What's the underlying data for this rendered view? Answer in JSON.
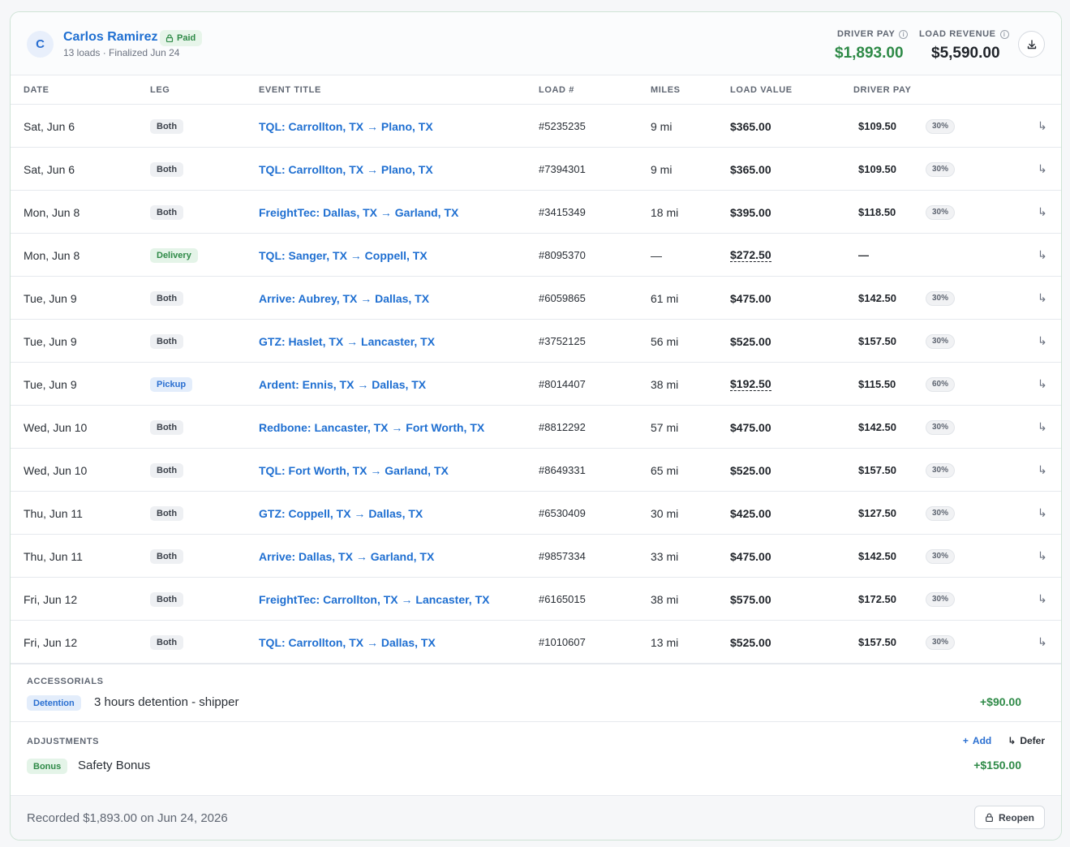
{
  "driver": {
    "initial": "C",
    "name": "Carlos Ramirez",
    "status": "Paid",
    "subtitle": "13 loads · Finalized Jun 24"
  },
  "stats": {
    "driver_pay_label": "DRIVER PAY",
    "driver_pay_value": "$1,893.00",
    "load_revenue_label": "LOAD REVENUE",
    "load_revenue_value": "$5,590.00"
  },
  "columns": [
    "DATE",
    "LEG",
    "EVENT TITLE",
    "LOAD #",
    "MILES",
    "LOAD VALUE",
    "DRIVER PAY"
  ],
  "rows": [
    {
      "date": "Sat, Jun 6",
      "leg": "Both",
      "title": "TQL: Carrollton, TX → Plano, TX",
      "load": "#5235235",
      "miles": "9 mi",
      "value": "$365.00",
      "pay": "$109.50",
      "pct": "30%"
    },
    {
      "date": "Sat, Jun 6",
      "leg": "Both",
      "title": "TQL: Carrollton, TX → Plano, TX",
      "load": "#7394301",
      "miles": "9 mi",
      "value": "$365.00",
      "pay": "$109.50",
      "pct": "30%"
    },
    {
      "date": "Mon, Jun 8",
      "leg": "Both",
      "title": "FreightTec: Dallas, TX → Garland, TX",
      "load": "#3415349",
      "miles": "18 mi",
      "value": "$395.00",
      "pay": "$118.50",
      "pct": "30%"
    },
    {
      "date": "Mon, Jun 8",
      "leg": "Delivery",
      "title": "TQL: Sanger, TX → Coppell, TX",
      "load": "#8095370",
      "miles": "—",
      "value": "$272.50",
      "pay": "—",
      "pct": ""
    },
    {
      "date": "Tue, Jun 9",
      "leg": "Both",
      "title": "Arrive: Aubrey, TX → Dallas, TX",
      "load": "#6059865",
      "miles": "61 mi",
      "value": "$475.00",
      "pay": "$142.50",
      "pct": "30%"
    },
    {
      "date": "Tue, Jun 9",
      "leg": "Both",
      "title": "GTZ: Haslet, TX → Lancaster, TX",
      "load": "#3752125",
      "miles": "56 mi",
      "value": "$525.00",
      "pay": "$157.50",
      "pct": "30%"
    },
    {
      "date": "Tue, Jun 9",
      "leg": "Pickup",
      "title": "Ardent: Ennis, TX → Dallas, TX",
      "load": "#8014407",
      "miles": "38 mi",
      "value": "$192.50",
      "pay": "$115.50",
      "pct": "60%"
    },
    {
      "date": "Wed, Jun 10",
      "leg": "Both",
      "title": "Redbone: Lancaster, TX → Fort Worth, TX",
      "load": "#8812292",
      "miles": "57 mi",
      "value": "$475.00",
      "pay": "$142.50",
      "pct": "30%"
    },
    {
      "date": "Wed, Jun 10",
      "leg": "Both",
      "title": "TQL: Fort Worth, TX → Garland, TX",
      "load": "#8649331",
      "miles": "65 mi",
      "value": "$525.00",
      "pay": "$157.50",
      "pct": "30%"
    },
    {
      "date": "Thu, Jun 11",
      "leg": "Both",
      "title": "GTZ: Coppell, TX → Dallas, TX",
      "load": "#6530409",
      "miles": "30 mi",
      "value": "$425.00",
      "pay": "$127.50",
      "pct": "30%"
    },
    {
      "date": "Thu, Jun 11",
      "leg": "Both",
      "title": "Arrive: Dallas, TX → Garland, TX",
      "load": "#9857334",
      "miles": "33 mi",
      "value": "$475.00",
      "pay": "$142.50",
      "pct": "30%"
    },
    {
      "date": "Fri, Jun 12",
      "leg": "Both",
      "title": "FreightTec: Carrollton, TX → Lancaster, TX",
      "load": "#6165015",
      "miles": "38 mi",
      "value": "$575.00",
      "pay": "$172.50",
      "pct": "30%"
    },
    {
      "date": "Fri, Jun 12",
      "leg": "Both",
      "title": "TQL: Carrollton, TX → Dallas, TX",
      "load": "#1010607",
      "miles": "13 mi",
      "value": "$525.00",
      "pay": "$157.50",
      "pct": "30%"
    }
  ],
  "accessorials": {
    "label": "ACCESSORIALS",
    "items": [
      {
        "type": "Detention",
        "description": "3 hours detention - shipper",
        "amount": "+$90.00"
      }
    ]
  },
  "adjustments": {
    "label": "ADJUSTMENTS",
    "add_label": "Add",
    "defer_label": "Defer",
    "items": [
      {
        "type": "Bonus",
        "description": "Safety Bonus",
        "amount": "+$150.00"
      }
    ]
  },
  "footer": {
    "recorded_text": "Recorded $1,893.00 on Jun 24, 2026",
    "reopen_label": "Reopen"
  },
  "colors": {
    "accent_blue": "#1f6fd1",
    "money_green": "#2e8a47",
    "border": "#e6e9ee"
  },
  "icons": {
    "lock": "lock-icon",
    "info": "info-icon",
    "download": "download-icon",
    "row_action": "corner-arrow-icon",
    "plus": "plus-icon"
  }
}
